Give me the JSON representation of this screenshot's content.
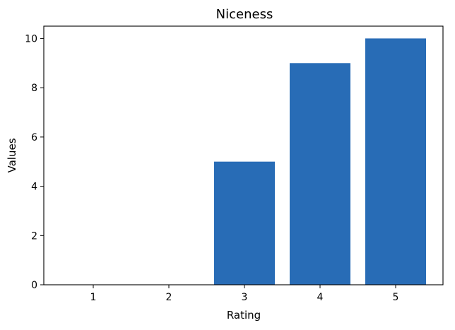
{
  "chart_data": {
    "type": "bar",
    "title": "Niceness",
    "xlabel": "Rating",
    "ylabel": "Values",
    "categories": [
      "1",
      "2",
      "3",
      "4",
      "5"
    ],
    "values": [
      0,
      0,
      5,
      9,
      10
    ],
    "ylim": [
      0,
      10.5
    ],
    "yticks": [
      "0",
      "2",
      "4",
      "6",
      "8",
      "10"
    ],
    "grid": false,
    "bar_color": "#286cb6"
  }
}
